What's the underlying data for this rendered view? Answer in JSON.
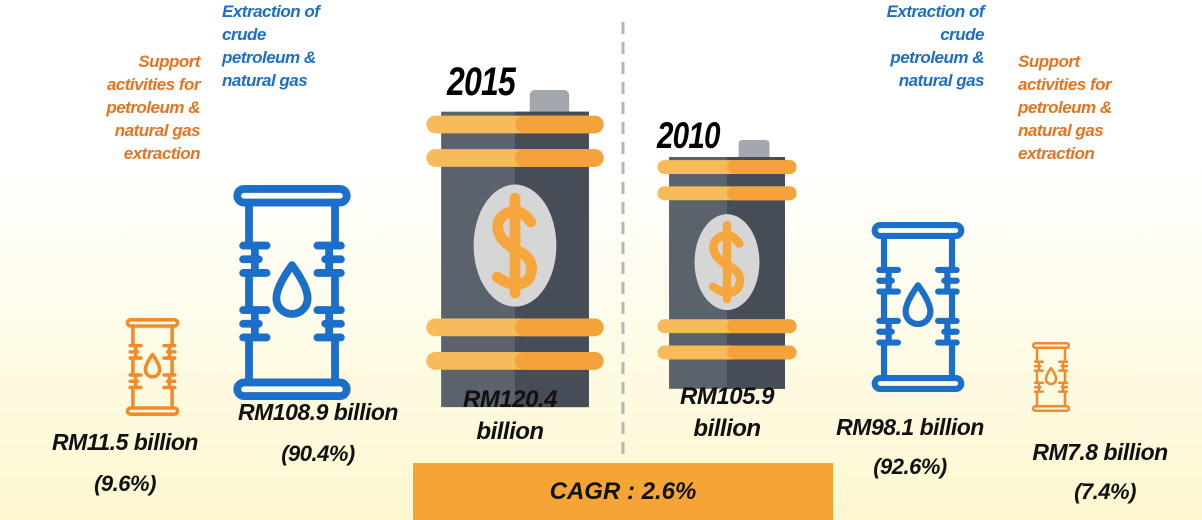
{
  "panels": [
    {
      "year": "2015",
      "total": "RM120.4 billion",
      "support": {
        "label": "Support activities for petroleum & natural gas extraction",
        "value": "RM11.5 billion",
        "share": "(9.6%)"
      },
      "extraction": {
        "label": "Extraction of crude petroleum & natural gas",
        "value": "RM108.9 billion",
        "share": "(90.4%)"
      }
    },
    {
      "year": "2010",
      "total": "RM105.9 billion",
      "support": {
        "label": "Support activities for petroleum & natural gas extraction",
        "value": "RM7.8 billion",
        "share": "(7.4%)"
      },
      "extraction": {
        "label": "Extraction of crude petroleum & natural gas",
        "value": "RM98.1 billion",
        "share": "(92.6%)"
      }
    }
  ],
  "cagr": "CAGR : 2.6%"
}
